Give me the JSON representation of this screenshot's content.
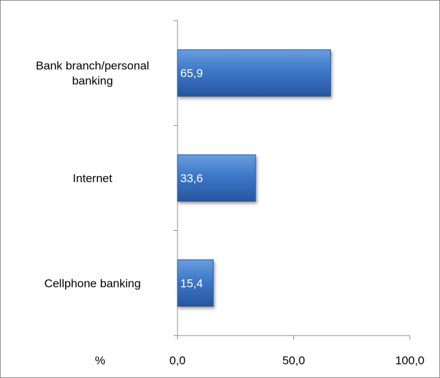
{
  "chart_data": {
    "type": "bar",
    "orientation": "horizontal",
    "categories": [
      "Bank branch/personal banking",
      "Internet",
      "Cellphone banking"
    ],
    "category_lines": [
      [
        "Bank branch/personal",
        "banking"
      ],
      [
        "Internet"
      ],
      [
        "Cellphone banking"
      ]
    ],
    "values": [
      65.9,
      33.6,
      15.4
    ],
    "data_labels": [
      "65,9",
      "33,6",
      "15,4"
    ],
    "xlabel": "%",
    "xlim": [
      0,
      100
    ],
    "x_ticks": [
      0,
      50,
      100
    ],
    "x_tick_labels": [
      "0,0",
      "50,0",
      "100,0"
    ],
    "grid": false,
    "legend": "none",
    "colors": {
      "bar": "#3c78c8",
      "bar_dark": "#2656a0",
      "bar_light": "#6a9ddc",
      "axis": "#8c8c8c"
    }
  }
}
